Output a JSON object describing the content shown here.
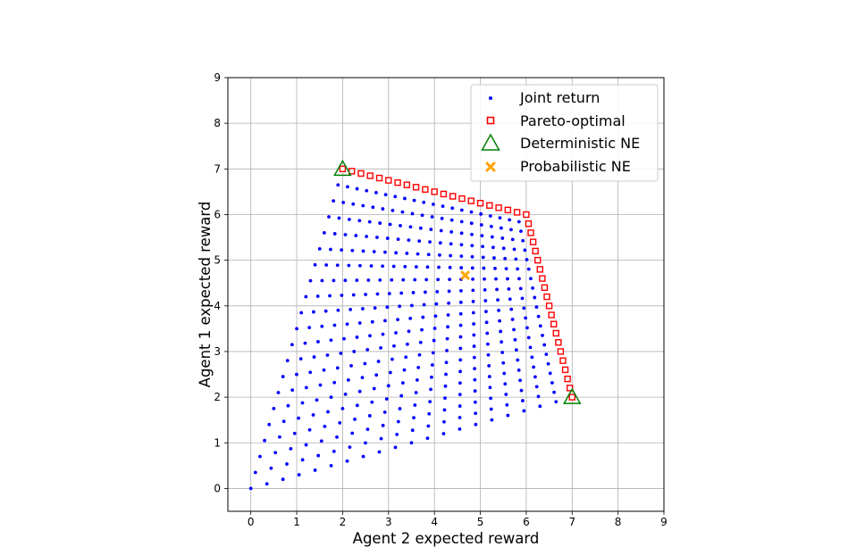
{
  "chart_data": {
    "type": "scatter",
    "xlabel": "Agent 2 expected reward",
    "ylabel": "Agent 1 expected reward",
    "xlim": [
      -0.5,
      9
    ],
    "ylim": [
      -0.5,
      9
    ],
    "xticks": [
      "0",
      "1",
      "2",
      "3",
      "4",
      "5",
      "6",
      "7",
      "8",
      "9"
    ],
    "yticks": [
      "0",
      "1",
      "2",
      "3",
      "4",
      "5",
      "6",
      "7",
      "8",
      "9"
    ],
    "grid": true,
    "legend_position": "top-right",
    "payoffs": {
      "joint_strategy_corners": [
        {
          "x": 0,
          "y": 0
        },
        {
          "x": 2,
          "y": 7
        },
        {
          "x": 7,
          "y": 2
        },
        {
          "x": 6,
          "y": 6
        }
      ],
      "grid_steps": 21
    },
    "series": [
      {
        "name": "Joint return",
        "marker": "dot",
        "color": "#0000ff"
      },
      {
        "name": "Pareto-optimal",
        "marker": "square-open",
        "color": "#ff0000",
        "points": [
          [
            2,
            7
          ],
          [
            6,
            6
          ],
          [
            7,
            2
          ]
        ]
      },
      {
        "name": "Deterministic NE",
        "marker": "triangle-open",
        "color": "#008000",
        "points": [
          [
            2,
            7
          ],
          [
            7,
            2
          ]
        ]
      },
      {
        "name": "Probabilistic NE",
        "marker": "x-filled",
        "color": "#ffa500",
        "points": [
          [
            4.67,
            4.67
          ]
        ]
      }
    ]
  }
}
